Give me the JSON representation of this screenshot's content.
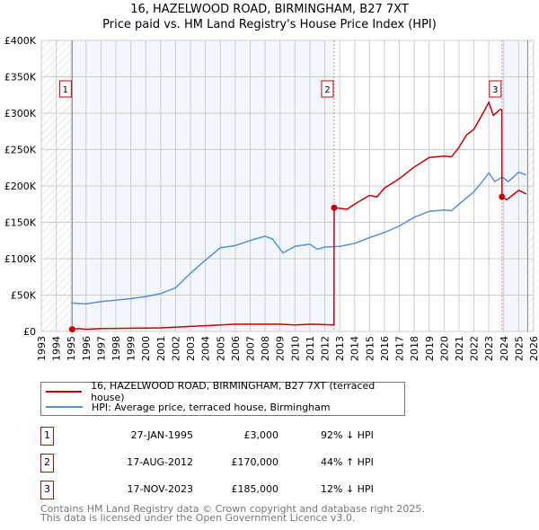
{
  "title": "16, HAZELWOOD ROAD, BIRMINGHAM, B27 7XT",
  "subtitle": "Price paid vs. HM Land Registry's House Price Index (HPI)",
  "chart_data": {
    "type": "line",
    "title": "16, HAZELWOOD ROAD, BIRMINGHAM, B27 7XT",
    "subtitle": "Price paid vs. HM Land Registry's House Price Index (HPI)",
    "xlim": [
      1993,
      2026
    ],
    "ylim": [
      0,
      400000
    ],
    "x_ticks": [
      "1993",
      "1994",
      "1995",
      "1996",
      "1997",
      "1998",
      "1999",
      "2000",
      "2001",
      "2002",
      "2003",
      "2004",
      "2005",
      "2006",
      "2007",
      "2008",
      "2009",
      "2010",
      "2011",
      "2012",
      "2013",
      "2014",
      "2015",
      "2016",
      "2017",
      "2018",
      "2019",
      "2020",
      "2021",
      "2022",
      "2023",
      "2024",
      "2025",
      "2026"
    ],
    "y_ticks": [
      {
        "v": 0,
        "label": "£0"
      },
      {
        "v": 50000,
        "label": "£50K"
      },
      {
        "v": 100000,
        "label": "£100K"
      },
      {
        "v": 150000,
        "label": "£150K"
      },
      {
        "v": 200000,
        "label": "£200K"
      },
      {
        "v": 250000,
        "label": "£250K"
      },
      {
        "v": 300000,
        "label": "£300K"
      },
      {
        "v": 350000,
        "label": "£350K"
      },
      {
        "v": 400000,
        "label": "£400K"
      }
    ],
    "grid": true,
    "series": [
      {
        "name": "16, HAZELWOOD ROAD, BIRMINGHAM, B27 7XT (terraced house)",
        "color": "#cc0000",
        "x": [
          1995.07,
          1995.5,
          1996,
          1997,
          2001,
          2003,
          2005,
          2006,
          2009,
          2010,
          2011.2,
          2012.62,
          2012.63,
          2013.5,
          2014,
          2015,
          2015.5,
          2016,
          2017,
          2018,
          2019,
          2020,
          2020.5,
          2021,
          2021.5,
          2022,
          2022.5,
          2023,
          2023.3,
          2023.75,
          2023.87,
          2023.88,
          2024.2,
          2025,
          2025.5
        ],
        "y": [
          3000,
          4000,
          3000,
          4000,
          5000,
          7000,
          9000,
          10000,
          10000,
          9000,
          10000,
          9000,
          170000,
          168000,
          175000,
          187000,
          185000,
          197000,
          210000,
          226000,
          239000,
          241000,
          240000,
          253000,
          270000,
          278000,
          296000,
          315000,
          297000,
          305000,
          305000,
          185000,
          181000,
          194000,
          189000
        ]
      },
      {
        "name": "HPI: Average price, terraced house, Birmingham",
        "color": "#5b8fd4",
        "x": [
          1995,
          1996,
          1997,
          1998,
          1999,
          2000,
          2001,
          2002,
          2003,
          2004,
          2005,
          2006,
          2007,
          2008,
          2008.5,
          2009.2,
          2010,
          2011,
          2011.5,
          2012,
          2013,
          2014,
          2015,
          2016,
          2017,
          2018,
          2019,
          2020,
          2020.5,
          2021,
          2022,
          2022.6,
          2023,
          2023.4,
          2023.9,
          2024.3,
          2025,
          2025.5
        ],
        "y": [
          39000,
          38000,
          41000,
          43000,
          45000,
          48000,
          52000,
          60000,
          80000,
          98000,
          115000,
          118000,
          125000,
          131000,
          127000,
          108000,
          117000,
          120000,
          113000,
          116000,
          117000,
          121000,
          129000,
          136000,
          145000,
          157000,
          165000,
          167000,
          166000,
          175000,
          192000,
          207000,
          218000,
          206000,
          212000,
          206000,
          219000,
          215000
        ]
      }
    ],
    "transactions": [
      {
        "label": "1",
        "x": 1995.07,
        "y": 3000
      },
      {
        "label": "2",
        "x": 2012.63,
        "y": 170000
      },
      {
        "label": "3",
        "x": 2023.88,
        "y": 185000
      }
    ],
    "legend_placement": "bottom"
  },
  "legend": [
    {
      "label": "16, HAZELWOOD ROAD, BIRMINGHAM, B27 7XT (terraced house)",
      "color": "#cc0000"
    },
    {
      "label": "HPI: Average price, terraced house, Birmingham",
      "color": "#5b8fd4"
    }
  ],
  "table": [
    {
      "num": "1",
      "date": "27-JAN-1995",
      "price": "£3,000",
      "hpi": "92% ↓ HPI"
    },
    {
      "num": "2",
      "date": "17-AUG-2012",
      "price": "£170,000",
      "hpi": "44% ↑ HPI"
    },
    {
      "num": "3",
      "date": "17-NOV-2023",
      "price": "£185,000",
      "hpi": "12% ↓ HPI"
    }
  ],
  "footer": [
    "Contains HM Land Registry data © Crown copyright and database right 2025.",
    "This data is licensed under the Open Government Licence v3.0."
  ]
}
